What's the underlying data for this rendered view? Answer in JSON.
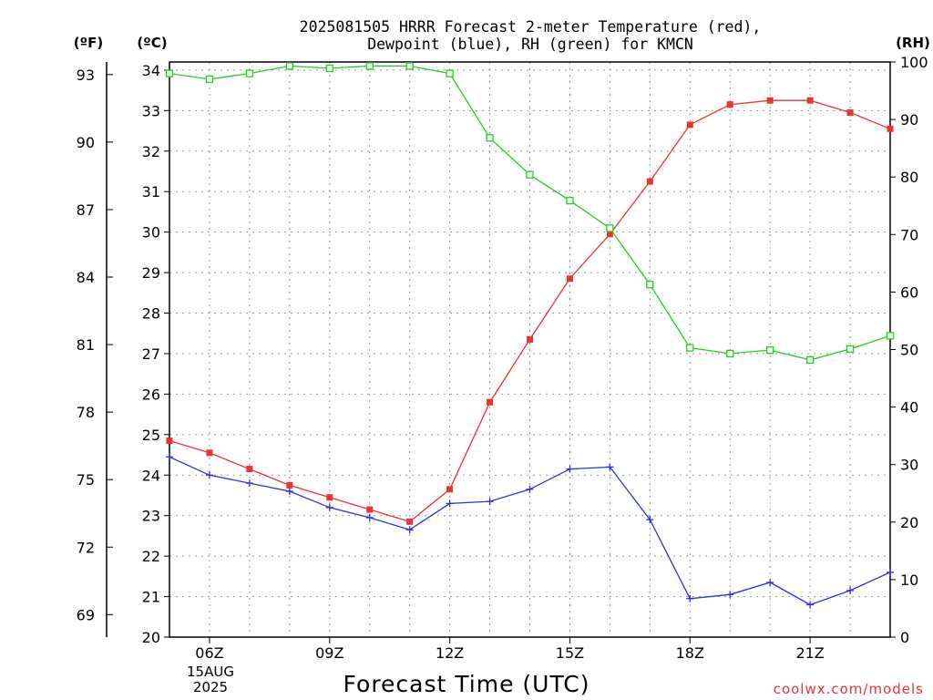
{
  "chart_data": {
    "type": "line",
    "title_line1": "2025081505 HRRR Forecast 2-meter Temperature (red),",
    "title_line2": "Dewpoint (blue), RH (green) for KMCN",
    "xlabel": "Forecast Time (UTC)",
    "credit": "coolwx.com/models",
    "axis_f_label": "(ºF)",
    "axis_c_label": "(ºC)",
    "axis_rh_label": "(RH)",
    "date_label_line1": "15AUG",
    "date_label_line2": "2025",
    "x_hours": [
      5,
      6,
      7,
      8,
      9,
      10,
      11,
      12,
      13,
      14,
      15,
      16,
      17,
      18,
      19,
      20,
      21,
      22,
      23
    ],
    "x_range": [
      5,
      23
    ],
    "x_tick_hours": [
      6,
      9,
      12,
      15,
      18,
      21
    ],
    "x_tick_labels": [
      "06Z",
      "09Z",
      "12Z",
      "15Z",
      "18Z",
      "21Z"
    ],
    "c_range": [
      20,
      34.2
    ],
    "c_ticks": [
      "20",
      "21",
      "22",
      "23",
      "24",
      "25",
      "26",
      "27",
      "28",
      "29",
      "30",
      "31",
      "32",
      "33",
      "34"
    ],
    "f_ticks": [
      "69",
      "72",
      "75",
      "78",
      "81",
      "84",
      "87",
      "90",
      "93"
    ],
    "rh_range": [
      0,
      100
    ],
    "rh_ticks": [
      "0",
      "10",
      "20",
      "30",
      "40",
      "50",
      "60",
      "70",
      "80",
      "90",
      "100"
    ],
    "colors": {
      "temperature": "#e83434",
      "dewpoint": "#2f2fe0",
      "rh": "#20d020"
    },
    "series": [
      {
        "key": "temperature",
        "units": "C",
        "marker": "filled-square",
        "values": [
          24.85,
          24.55,
          24.15,
          23.75,
          23.45,
          23.15,
          22.85,
          23.65,
          25.8,
          27.35,
          28.85,
          29.95,
          31.25,
          32.65,
          33.15,
          33.25,
          33.25,
          32.95,
          32.55
        ]
      },
      {
        "key": "dewpoint",
        "units": "C",
        "marker": "plus",
        "values": [
          24.45,
          24.0,
          23.8,
          23.6,
          23.2,
          22.95,
          22.65,
          23.3,
          23.35,
          23.65,
          24.15,
          24.2,
          22.9,
          20.95,
          21.05,
          21.35,
          20.8,
          21.15,
          21.6
        ]
      },
      {
        "key": "rh",
        "units": "%",
        "marker": "open-square",
        "values": [
          98,
          97,
          98,
          99.3,
          98.9,
          99.3,
          99.3,
          98,
          86.8,
          80.4,
          75.9,
          71.1,
          61.3,
          50.3,
          49.3,
          49.9,
          48.2,
          50.1,
          52.4
        ]
      }
    ]
  }
}
